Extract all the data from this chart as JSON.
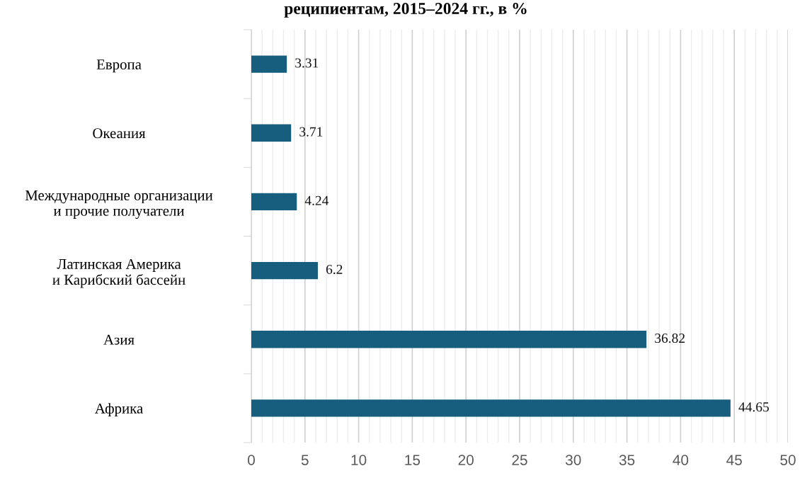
{
  "chart_data": {
    "type": "bar",
    "orientation": "horizontal",
    "title": "реципиентам, 2015–2024 гг., в %",
    "categories": [
      "Европа",
      "Океания",
      "Международные организации\nи прочие получатели",
      "Латинская Америка\nи Карибский бассейн",
      "Азия",
      "Африка"
    ],
    "values": [
      3.31,
      3.71,
      4.24,
      6.2,
      36.82,
      44.65
    ],
    "color": "#175e7e",
    "data_labels": true,
    "xlim": [
      0,
      50
    ],
    "xticks": [
      0,
      5,
      10,
      15,
      20,
      25,
      30,
      35,
      40,
      45,
      50
    ],
    "grid": "x"
  }
}
